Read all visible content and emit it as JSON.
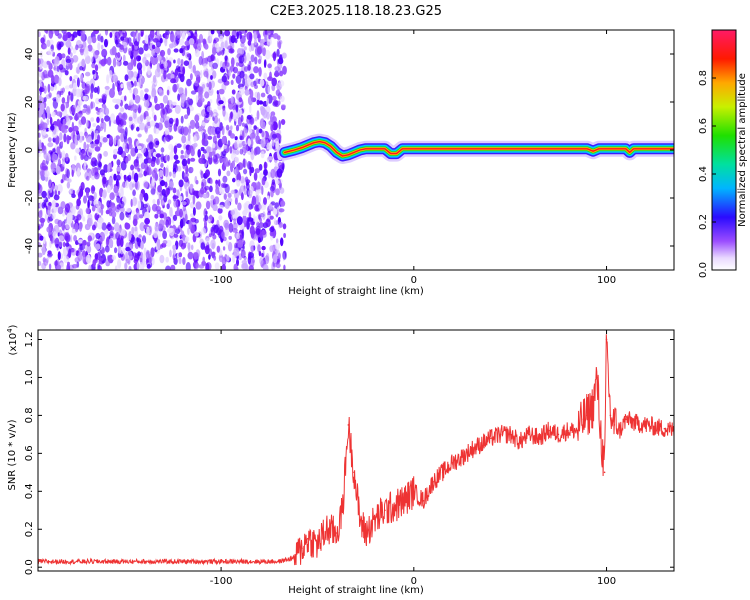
{
  "chart_data": [
    {
      "type": "heatmap",
      "title": "C2E3.2025.118.18.23.G25",
      "xlabel": "Height of straight line (km)",
      "ylabel": "Frequency (Hz)",
      "xlim": [
        -195,
        135
      ],
      "ylim": [
        -50,
        50
      ],
      "x_ticks": [
        -100,
        0,
        100
      ],
      "x_tick_labels": [
        "-100",
        "0",
        "100"
      ],
      "y_ticks": [
        -40,
        -20,
        0,
        20,
        40
      ],
      "y_tick_labels": [
        "-40",
        "-20",
        "0",
        "20",
        "40"
      ],
      "noise_region_x": [
        -195,
        -67
      ],
      "ridge_x": [
        -67,
        -62,
        -58,
        -55,
        -52,
        -49,
        -46,
        -43,
        -40,
        -37,
        -34,
        -31,
        -28,
        -25,
        -20,
        -15,
        -12,
        -9,
        -6,
        -3,
        0,
        3,
        20,
        40,
        60,
        70,
        80,
        90,
        93,
        96,
        100,
        110,
        112,
        114,
        120,
        135
      ],
      "ridge_freq": [
        -1,
        0,
        1,
        2,
        3,
        3.5,
        3,
        1.5,
        -1,
        -2.5,
        -2,
        -1,
        0,
        0.5,
        0.5,
        0.5,
        -1.5,
        -1.5,
        0.5,
        0.5,
        0.5,
        0.5,
        0.5,
        0.5,
        0.5,
        0.5,
        0.5,
        0.5,
        -0.5,
        0.5,
        0.5,
        0.5,
        -1,
        0.5,
        0.5,
        0.5
      ],
      "grid": false,
      "colorbar": {
        "label": "Normalized spectral amplitude",
        "range": [
          0,
          1
        ],
        "ticks": [
          "0.0",
          "0.2",
          "0.4",
          "0.6",
          "0.8"
        ],
        "tick_values": [
          0.0,
          0.2,
          0.4,
          0.6,
          0.8
        ]
      }
    },
    {
      "type": "line",
      "xlabel": "Height of straight line (km)",
      "ylabel": "SNR (10 * v/v)",
      "y_multiplier_label": "(x10",
      "y_multiplier_exp": "4",
      "xlim": [
        -195,
        135
      ],
      "ylim": [
        -0.02,
        1.25
      ],
      "x_ticks": [
        -100,
        0,
        100
      ],
      "x_tick_labels": [
        "-100",
        "0",
        "100"
      ],
      "y_ticks": [
        0.0,
        0.2,
        0.4,
        0.6,
        0.8,
        1.0,
        1.2
      ],
      "y_tick_labels": [
        "0.0",
        "0.2",
        "0.4",
        "0.6",
        "0.8",
        "1.0",
        "1.2"
      ],
      "grid": false,
      "series": [
        {
          "color": "#ee3333",
          "x": [
            -195,
            -180,
            -160,
            -140,
            -120,
            -100,
            -85,
            -70,
            -62,
            -58,
            -55,
            -50,
            -45,
            -40,
            -37,
            -34,
            -31,
            -28,
            -25,
            -20,
            -15,
            -10,
            -5,
            0,
            5,
            10,
            15,
            20,
            25,
            30,
            35,
            40,
            45,
            50,
            55,
            60,
            65,
            70,
            75,
            80,
            85,
            88,
            90,
            93,
            95,
            97,
            99,
            100,
            102,
            104,
            107,
            110,
            115,
            120,
            125,
            130,
            135
          ],
          "y": [
            0.03,
            0.03,
            0.03,
            0.03,
            0.03,
            0.03,
            0.03,
            0.03,
            0.05,
            0.1,
            0.15,
            0.12,
            0.2,
            0.18,
            0.3,
            0.75,
            0.5,
            0.25,
            0.18,
            0.25,
            0.3,
            0.32,
            0.35,
            0.4,
            0.35,
            0.45,
            0.5,
            0.55,
            0.58,
            0.62,
            0.65,
            0.68,
            0.7,
            0.7,
            0.66,
            0.7,
            0.68,
            0.72,
            0.7,
            0.72,
            0.72,
            0.78,
            0.8,
            0.85,
            1.0,
            0.7,
            0.5,
            1.2,
            0.8,
            0.75,
            0.72,
            0.78,
            0.76,
            0.75,
            0.74,
            0.73,
            0.72
          ]
        }
      ]
    }
  ]
}
